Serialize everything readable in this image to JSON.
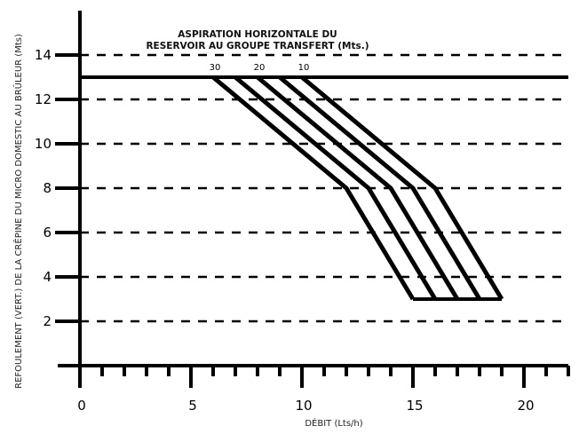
{
  "chart_data": {
    "type": "line",
    "title_line1": "ASPIRATION HORIZONTALE DU",
    "title_line2": "RESERVOIR AU GROUPE TRANSFERT (Mts.)",
    "xlabel": "DÉBIT (Lts/h)",
    "ylabel": "REFOULEMENT (VERT.) DE LA CRÊPINE DU MICRO DOMESTIC AU BRÛLEUR (Mts)",
    "xlim": [
      0,
      22
    ],
    "ylim": [
      0,
      16
    ],
    "x_ticks": [
      0,
      5,
      10,
      15,
      20
    ],
    "y_ticks": [
      2,
      4,
      6,
      8,
      10,
      12,
      14
    ],
    "x_minor_step": 1,
    "grid": "horizontal-dashed",
    "series": [
      {
        "name": "30",
        "points": [
          [
            6,
            13
          ],
          [
            12,
            8
          ],
          [
            15,
            3
          ]
        ]
      },
      {
        "name": "",
        "points": [
          [
            7,
            13
          ],
          [
            13,
            8
          ],
          [
            16,
            3
          ]
        ]
      },
      {
        "name": "20",
        "points": [
          [
            8,
            13
          ],
          [
            14,
            8
          ],
          [
            17,
            3
          ]
        ]
      },
      {
        "name": "",
        "points": [
          [
            9,
            13
          ],
          [
            15,
            8
          ],
          [
            18,
            3
          ]
        ]
      },
      {
        "name": "10",
        "points": [
          [
            10,
            13
          ],
          [
            16,
            8
          ],
          [
            19,
            3
          ]
        ]
      }
    ],
    "top_line_y": 13,
    "bottom_line": {
      "y": 3,
      "x": [
        15,
        19
      ]
    }
  }
}
